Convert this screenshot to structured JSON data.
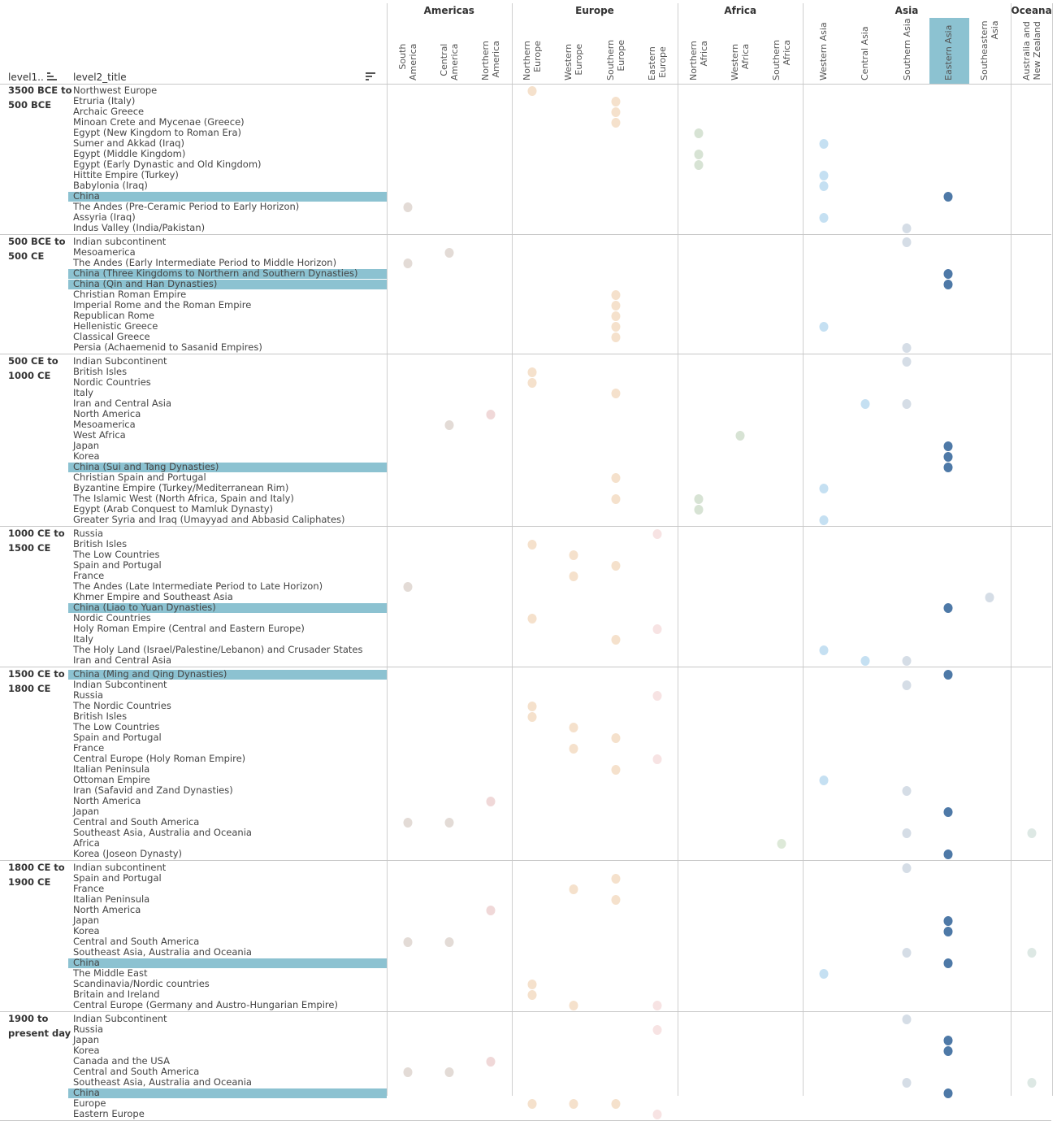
{
  "chart_data": {
    "type": "scatter",
    "title": "",
    "row_header_1": "level1..",
    "row_header_2": "level2_title",
    "highlighted_column": "Eastern Asia",
    "highlight_color": "#8cc2d1",
    "region_groups": [
      {
        "name": "Americas",
        "columns": [
          "South America",
          "Central America",
          "Northern America"
        ],
        "color": "#e6dcd6"
      },
      {
        "name": "Europe",
        "columns": [
          "Northern Europe",
          "Western Europe",
          "Southern Europe",
          "Eastern Europe"
        ],
        "color": "#f5e1cc"
      },
      {
        "name": "Africa",
        "columns": [
          "Northern Africa",
          "Western Africa",
          "Southern Africa"
        ],
        "color": "#d7e5d6"
      },
      {
        "name": "Asia",
        "columns": [
          "Western Asia",
          "Central Asia",
          "Southern Asia",
          "Eastern Asia",
          "Southeastern Asia"
        ],
        "color": "#c5e0f2"
      },
      {
        "name": "Oceana",
        "columns": [
          "Australia and New Zealand"
        ],
        "color": "#dde8e4"
      }
    ],
    "column_labels": {
      "South America": "South\nAmerica",
      "Central America": "Central\nAmerica",
      "Northern America": "Northern\nAmerica",
      "Northern Europe": "Northern\nEurope",
      "Western Europe": "Western\nEurope",
      "Southern Europe": "Southern\nEurope",
      "Eastern Europe": "Eastern\nEurope",
      "Northern Africa": "Northern\nAfrica",
      "Western Africa": "Western\nAfrica",
      "Southern Africa": "Southern\nAfrica",
      "Western Asia": "Western Asia",
      "Central Asia": "Central Asia",
      "Southern Asia": "Southern Asia",
      "Eastern Asia": "Eastern Asia",
      "Southeastern Asia": "Southeastern\nAsia",
      "Australia and New Zealand": "Australia and\nNew Zealand"
    },
    "mark_colors": {
      "South America": "#e3dbd6",
      "Central America": "#e3dbd6",
      "Northern America": "#f0d8d8",
      "Northern Europe": "#f5e1cc",
      "Western Europe": "#f5e1cc",
      "Southern Europe": "#f5e1cc",
      "Eastern Europe": "#f7e3e3",
      "Northern Africa": "#d7e3d4",
      "Western Africa": "#d7e3d4",
      "Southern Africa": "#dde9d8",
      "Western Asia": "#c5e0f2",
      "Central Asia": "#c5e0f2",
      "Southern Asia": "#d5dde6",
      "Eastern Asia": "#4e79a7",
      "Southeastern Asia": "#d5dde6",
      "Australia and New Zealand": "#dde8e4"
    },
    "periods": [
      {
        "label": "3500 BCE to\n500 BCE",
        "rows": [
          {
            "title": "Northwest Europe",
            "region": "Northern Europe"
          },
          {
            "title": "Etruria (Italy)",
            "region": "Southern Europe"
          },
          {
            "title": "Archaic Greece",
            "region": "Southern Europe"
          },
          {
            "title": "Minoan Crete and Mycenae (Greece)",
            "region": "Southern Europe"
          },
          {
            "title": "Egypt (New Kingdom to Roman Era)",
            "region": "Northern Africa"
          },
          {
            "title": "Sumer and Akkad (Iraq)",
            "region": "Western Asia"
          },
          {
            "title": "Egypt (Middle Kingdom)",
            "region": "Northern Africa"
          },
          {
            "title": "Egypt (Early Dynastic and Old Kingdom)",
            "region": "Northern Africa"
          },
          {
            "title": "Hittite Empire (Turkey)",
            "region": "Western Asia"
          },
          {
            "title": "Babylonia (Iraq)",
            "region": "Western Asia"
          },
          {
            "title": "China",
            "region": "Eastern Asia",
            "highlight": true
          },
          {
            "title": "The Andes (Pre-Ceramic Period to Early Horizon)",
            "region": "South America"
          },
          {
            "title": "Assyria (Iraq)",
            "region": "Western Asia"
          },
          {
            "title": "Indus Valley (India/Pakistan)",
            "region": "Southern Asia"
          }
        ]
      },
      {
        "label": "500 BCE to\n500 CE",
        "rows": [
          {
            "title": "Indian subcontinent",
            "region": "Southern Asia"
          },
          {
            "title": "Mesoamerica",
            "region": "Central America"
          },
          {
            "title": "The Andes (Early Intermediate Period to Middle Horizon)",
            "region": "South America"
          },
          {
            "title": "China (Three Kingdoms to Northern and Southern Dynasties)",
            "region": "Eastern Asia",
            "highlight": true
          },
          {
            "title": "China (Qin and Han Dynasties)",
            "region": "Eastern Asia",
            "highlight": true
          },
          {
            "title": "Christian Roman Empire",
            "region": "Southern Europe"
          },
          {
            "title": "Imperial Rome and the Roman Empire",
            "region": "Southern Europe"
          },
          {
            "title": "Republican Rome",
            "region": "Southern Europe"
          },
          {
            "title": "Hellenistic Greece",
            "region": "Southern Europe",
            "extra": "Western Asia"
          },
          {
            "title": "Classical Greece",
            "region": "Southern Europe"
          },
          {
            "title": "Persia (Achaemenid to Sasanid Empires)",
            "region": "Southern Asia"
          }
        ]
      },
      {
        "label": "500 CE to\n1000 CE",
        "rows": [
          {
            "title": "Indian Subcontinent",
            "region": "Southern Asia"
          },
          {
            "title": "British Isles",
            "region": "Northern Europe"
          },
          {
            "title": "Nordic Countries",
            "region": "Northern Europe"
          },
          {
            "title": "Italy",
            "region": "Southern Europe"
          },
          {
            "title": "Iran and Central Asia",
            "region": "Central Asia",
            "extra": "Southern Asia"
          },
          {
            "title": "North America",
            "region": "Northern America"
          },
          {
            "title": "Mesoamerica",
            "region": "Central America"
          },
          {
            "title": "West Africa",
            "region": "Western Africa"
          },
          {
            "title": "Japan",
            "region": "Eastern Asia"
          },
          {
            "title": "Korea",
            "region": "Eastern Asia"
          },
          {
            "title": "China (Sui and Tang Dynasties)",
            "region": "Eastern Asia",
            "highlight": true
          },
          {
            "title": "Christian Spain and Portugal",
            "region": "Southern Europe"
          },
          {
            "title": "Byzantine Empire (Turkey/Mediterranean Rim)",
            "region": "Western Asia"
          },
          {
            "title": "The Islamic West (North Africa, Spain and Italy)",
            "region": "Southern Europe",
            "extra": "Northern Africa"
          },
          {
            "title": "Egypt (Arab Conquest to Mamluk Dynasty)",
            "region": "Northern Africa"
          },
          {
            "title": "Greater Syria and Iraq (Umayyad and Abbasid Caliphates)",
            "region": "Western Asia"
          }
        ]
      },
      {
        "label": "1000 CE to\n1500 CE",
        "rows": [
          {
            "title": "Russia",
            "region": "Eastern Europe"
          },
          {
            "title": "British Isles",
            "region": "Northern Europe"
          },
          {
            "title": "The Low Countries",
            "region": "Western Europe"
          },
          {
            "title": "Spain and Portugal",
            "region": "Southern Europe"
          },
          {
            "title": "France",
            "region": "Western Europe"
          },
          {
            "title": "The Andes (Late Intermediate Period to Late Horizon)",
            "region": "South America"
          },
          {
            "title": "Khmer Empire and Southeast Asia",
            "region": "Southeastern Asia"
          },
          {
            "title": "China (Liao to Yuan Dynasties)",
            "region": "Eastern Asia",
            "highlight": true
          },
          {
            "title": "Nordic Countries",
            "region": "Northern Europe"
          },
          {
            "title": "Holy Roman Empire (Central and Eastern Europe)",
            "region": "Eastern Europe"
          },
          {
            "title": "Italy",
            "region": "Southern Europe"
          },
          {
            "title": "The Holy Land (Israel/Palestine/Lebanon) and Crusader States",
            "region": "Western Asia"
          },
          {
            "title": "Iran and Central Asia",
            "region": "Central Asia",
            "extra": "Southern Asia"
          }
        ]
      },
      {
        "label": "1500 CE to\n1800 CE",
        "rows": [
          {
            "title": "China (Ming and Qing Dynasties)",
            "region": "Eastern Asia",
            "highlight": true
          },
          {
            "title": "Indian Subcontinent",
            "region": "Southern Asia"
          },
          {
            "title": "Russia",
            "region": "Eastern Europe"
          },
          {
            "title": "The Nordic Countries",
            "region": "Northern Europe"
          },
          {
            "title": "British Isles",
            "region": "Northern Europe"
          },
          {
            "title": "The Low Countries",
            "region": "Western Europe"
          },
          {
            "title": "Spain and Portugal",
            "region": "Southern Europe"
          },
          {
            "title": "France",
            "region": "Western Europe"
          },
          {
            "title": "Central Europe (Holy Roman Empire)",
            "region": "Eastern Europe"
          },
          {
            "title": "Italian Peninsula",
            "region": "Southern Europe"
          },
          {
            "title": "Ottoman Empire",
            "region": "Western Asia"
          },
          {
            "title": "Iran (Safavid and Zand Dynasties)",
            "region": "Southern Asia"
          },
          {
            "title": "North America",
            "region": "Northern America"
          },
          {
            "title": "Japan",
            "region": "Eastern Asia"
          },
          {
            "title": "Central and South America",
            "region": "South America",
            "extra": "Central America"
          },
          {
            "title": "Southeast Asia, Australia and Oceania",
            "region": "Southern Asia",
            "extra": "Australia and New Zealand"
          },
          {
            "title": "Africa",
            "region": "Southern Africa"
          },
          {
            "title": "Korea (Joseon Dynasty)",
            "region": "Eastern Asia"
          }
        ]
      },
      {
        "label": "1800 CE to\n1900 CE",
        "rows": [
          {
            "title": "Indian subcontinent",
            "region": "Southern Asia"
          },
          {
            "title": "Spain and Portugal",
            "region": "Southern Europe"
          },
          {
            "title": "France",
            "region": "Western Europe"
          },
          {
            "title": "Italian Peninsula",
            "region": "Southern Europe"
          },
          {
            "title": "North America",
            "region": "Northern America"
          },
          {
            "title": "Japan",
            "region": "Eastern Asia"
          },
          {
            "title": "Korea",
            "region": "Eastern Asia"
          },
          {
            "title": "Central and South America",
            "region": "South America",
            "extra": "Central America"
          },
          {
            "title": "Southeast Asia, Australia and Oceania",
            "region": "Southern Asia",
            "extra": "Australia and New Zealand"
          },
          {
            "title": "China",
            "region": "Eastern Asia",
            "highlight": true
          },
          {
            "title": "The Middle East",
            "region": "Western Asia"
          },
          {
            "title": "Scandinavia/Nordic countries",
            "region": "Northern Europe"
          },
          {
            "title": "Britain and Ireland",
            "region": "Northern Europe"
          },
          {
            "title": "Central Europe (Germany and Austro-Hungarian Empire)",
            "region": "Western Europe",
            "extra": "Eastern Europe"
          }
        ]
      },
      {
        "label": "1900 to\npresent day",
        "rows": [
          {
            "title": "Indian Subcontinent",
            "region": "Southern Asia"
          },
          {
            "title": "Russia",
            "region": "Eastern Europe"
          },
          {
            "title": "Japan",
            "region": "Eastern Asia"
          },
          {
            "title": "Korea",
            "region": "Eastern Asia"
          },
          {
            "title": "Canada and the USA",
            "region": "Northern America"
          },
          {
            "title": "Central and South America",
            "region": "South America",
            "extra": "Central America"
          },
          {
            "title": "Southeast Asia, Australia and Oceania",
            "region": "Southern Asia",
            "extra": "Australia and New Zealand"
          },
          {
            "title": "China",
            "region": "Eastern Asia",
            "highlight": true
          },
          {
            "title": "Europe",
            "region": "Northern Europe",
            "extra2": [
              "Western Europe",
              "Southern Europe"
            ]
          },
          {
            "title": "Eastern Europe",
            "region": "Eastern Europe"
          }
        ]
      }
    ]
  }
}
